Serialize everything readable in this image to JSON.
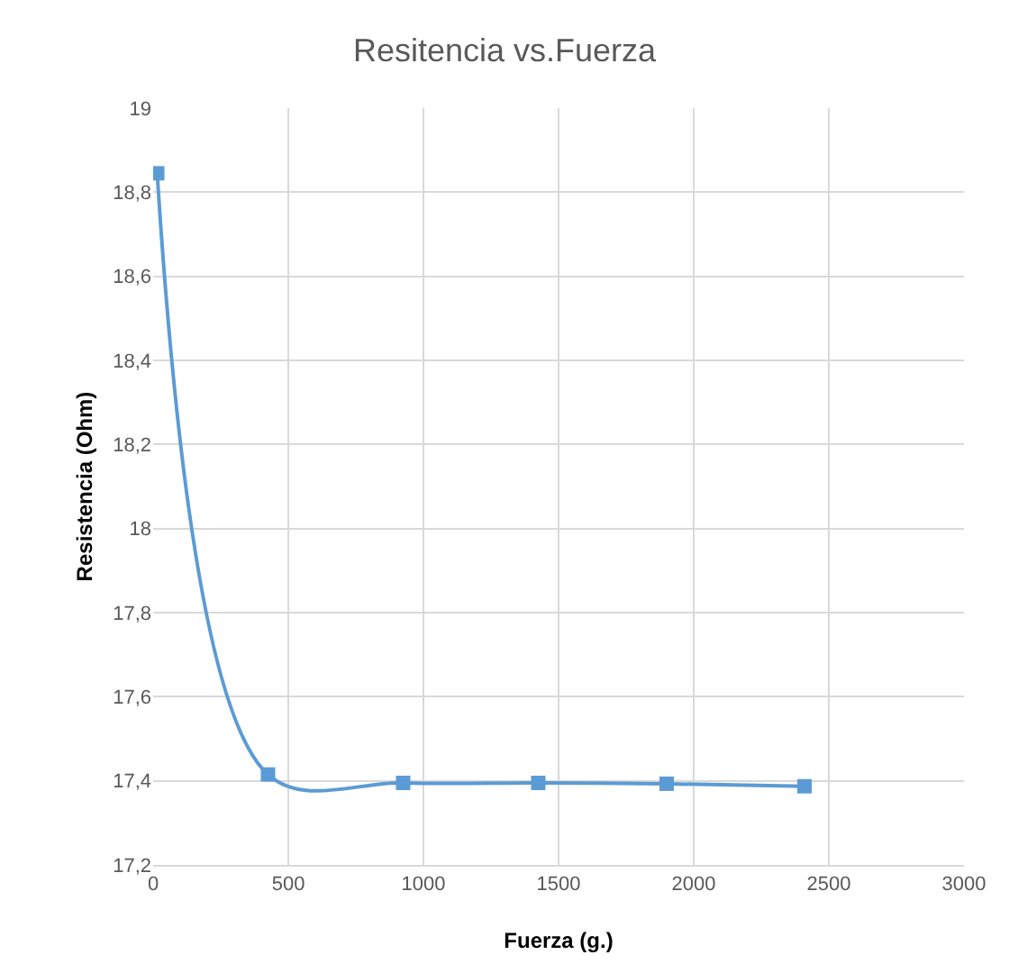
{
  "chart_data": {
    "type": "line",
    "title": "Resitencia vs.Fuerza",
    "xlabel": "Fuerza (g.)",
    "ylabel": "Resistencia (Ohm)",
    "x": [
      15,
      425,
      925,
      1425,
      1900,
      2410
    ],
    "series": [
      {
        "color": "#5b9bd5",
        "values": [
          18.845,
          17.415,
          17.395,
          17.395,
          17.393,
          17.387
        ]
      }
    ],
    "xlim": [
      0,
      3000
    ],
    "xticks": [
      0,
      500,
      1000,
      1500,
      2000,
      2500,
      3000
    ],
    "ylim": [
      17.2,
      19
    ],
    "yticks": [
      {
        "value": 17.2,
        "label": "17,2"
      },
      {
        "value": 17.4,
        "label": "17,4"
      },
      {
        "value": 17.6,
        "label": "17,6"
      },
      {
        "value": 17.8,
        "label": "17,8"
      },
      18,
      {
        "value": 18.2,
        "label": "18,2"
      },
      {
        "value": 18.4,
        "label": "18,4"
      },
      {
        "value": 18.6,
        "label": "18,6"
      },
      {
        "value": 18.8,
        "label": "18,8"
      },
      19
    ],
    "grid": true,
    "marker": "square",
    "line_style": "solid"
  }
}
